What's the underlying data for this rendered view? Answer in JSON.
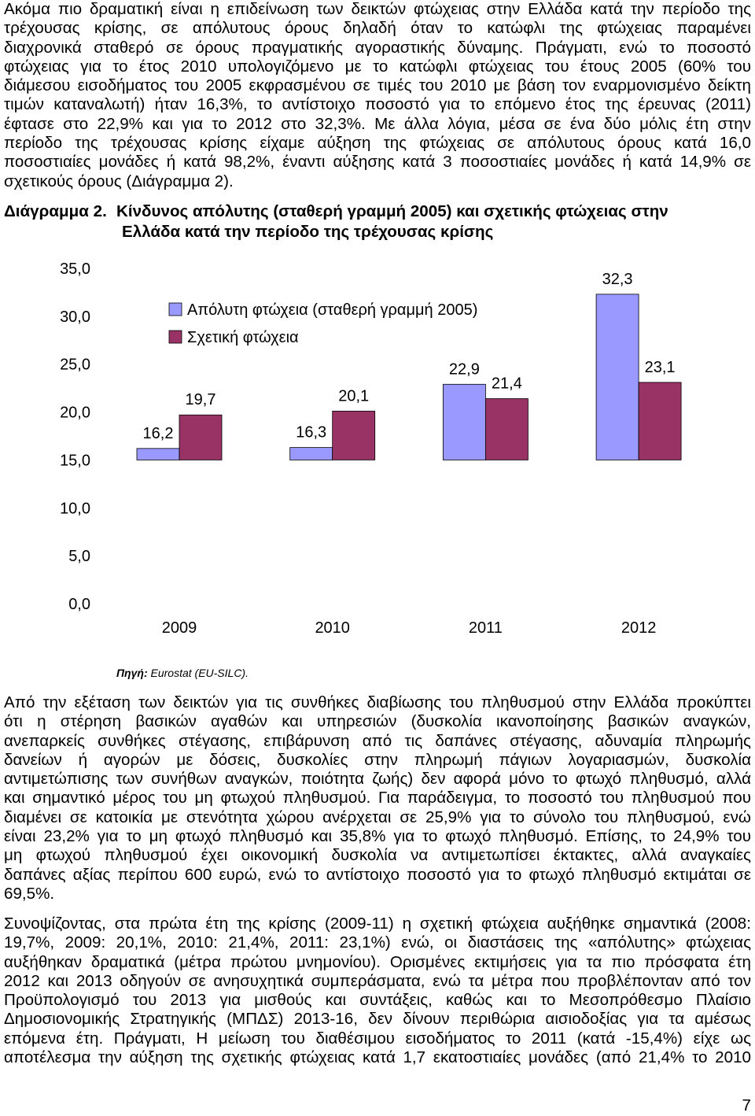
{
  "paragraph_1": {
    "lines": [
      "Ακόμα πιο δραματική είναι η επιδείνωση των δεικτών φτώχειας στην Ελλάδα κατά την περίοδο της",
      "τρέχουσας κρίσης, σε απόλυτους όρους δηλαδή όταν το κατώφλι της φτώχειας παραμένει",
      "διαχρονικά σταθερό σε όρους πραγματικής αγοραστικής δύναμης. Πράγματι, ενώ το ποσοστό",
      "φτώχειας για το έτος 2010 υπολογιζόμενο με το κατώφλι φτώχειας του έτους 2005 (60% του",
      "διάμεσου εισοδήματος του 2005 εκφρασμένου σε τιμές του 2010 με βάση τον εναρμονισμένο δείκτη",
      "τιμών καταναλωτή) ήταν 16,3%, το αντίστοιχο ποσοστό για το επόμενο έτος της έρευνας (2011)",
      "έφτασε στο 22,9% και για το 2012 στο 32,3%. Με άλλα λόγια, μέσα σε ένα δύο μόλις έτη στην",
      "περίοδο της τρέχουσας κρίσης είχαμε αύξηση της φτώχειας σε απόλυτους όρους κατά 16,0",
      "ποσοστιαίες μονάδες ή κατά 98,2%, έναντι αύξησης κατά 3 ποσοστιαίες μονάδες ή κατά 14,9% σε",
      "σχετικούς όρους (Διάγραμμα 2)."
    ]
  },
  "figure_caption": {
    "label": "Διάγραμμα 2.",
    "lines": [
      "Κίνδυνος απόλυτης (σταθερή γραμμή 2005) και σχετικής φτώχειας στην",
      "Ελλάδα κατά την περίοδο της τρέχουσας κρίσης"
    ]
  },
  "chart_data": {
    "type": "bar",
    "categories": [
      "2009",
      "2010",
      "2011",
      "2012"
    ],
    "series": [
      {
        "name": "Απόλυτη φτώχεια (σταθερή γραμμή 2005)",
        "values": [
          16.2,
          16.3,
          22.9,
          32.3
        ],
        "labels": [
          "16,2",
          "16,3",
          "22,9",
          "32,3"
        ],
        "color": "#9999FF"
      },
      {
        "name": "Σχετική φτώχεια",
        "values": [
          19.7,
          20.1,
          21.4,
          23.1
        ],
        "labels": [
          "19,7",
          "20,1",
          "21,4",
          "23,1"
        ],
        "color": "#993366"
      }
    ],
    "y_ticks": [
      {
        "value": 35,
        "label": "35,0"
      },
      {
        "value": 30,
        "label": "30,0"
      },
      {
        "value": 25,
        "label": "25,0"
      },
      {
        "value": 20,
        "label": "20,0"
      },
      {
        "value": 15,
        "label": "15,0"
      },
      {
        "value": 10,
        "label": "10,0"
      },
      {
        "value": 5,
        "label": "5,0"
      },
      {
        "value": 0,
        "label": "0,0"
      }
    ],
    "ylim": [
      0,
      35
    ],
    "grid": false,
    "legend_position": "top-left"
  },
  "source": {
    "label": "Πηγή:",
    "text": "Eurostat (EU-SILC)."
  },
  "paragraph_2": {
    "lines": [
      "Από την εξέταση των δεικτών για τις συνθήκες διαβίωσης του πληθυσμού στην Ελλάδα προκύπτει",
      "ότι η στέρηση βασικών αγαθών και υπηρεσιών (δυσκολία ικανοποίησης βασικών αναγκών,",
      "ανεπαρκείς συνθήκες στέγασης, επιβάρυνση από τις δαπάνες στέγασης, αδυναμία πληρωμής",
      "δανείων ή αγορών με δόσεις, δυσκολίες στην πληρωμή πάγιων λογαριασμών, δυσκολία",
      "αντιμετώπισης των συνήθων αναγκών, ποιότητα ζωής) δεν αφορά μόνο το φτωχό πληθυσμό, αλλά",
      "και σημαντικό μέρος του μη φτωχού πληθυσμού. Για παράδειγμα, το ποσοστό του πληθυσμού που",
      "διαμένει σε κατοικία με στενότητα χώρου ανέρχεται σε 25,9% για το σύνολο του πληθυσμού, ενώ",
      "είναι 23,2% για το μη φτωχό πληθυσμό και 35,8% για το φτωχό πληθυσμό. Επίσης, το 24,9% του",
      "μη φτωχού πληθυσμού έχει οικονομική δυσκολία να αντιμετωπίσει έκτακτες, αλλά αναγκαίες",
      "δαπάνες αξίας περίπου 600 ευρώ, ενώ το αντίστοιχο ποσοστό για το φτωχό πληθυσμό εκτιμάται σε",
      "69,5%."
    ]
  },
  "paragraph_3": {
    "lines": [
      "Συνοψίζοντας, στα πρώτα έτη της κρίσης (2009-11) η σχετική φτώχεια αυξήθηκε σημαντικά (2008:",
      "19,7%, 2009: 20,1%, 2010: 21,4%, 2011: 23,1%) ενώ, οι διαστάσεις της «απόλυτης» φτώχειας",
      "αυξήθηκαν δραματικά (μέτρα πρώτου μνημονίου). Ορισμένες εκτιμήσεις για τα πιο πρόσφατα έτη",
      "2012 και 2013 οδηγούν σε ανησυχητικά συμπεράσματα, ενώ τα μέτρα που προβλέπονταν από τον",
      "Προϋπολογισμό του 2013 για μισθούς και συντάξεις, καθώς και το Μεσοπρόθεσμο Πλαίσιο",
      "Δημοσιονομικής Στρατηγικής (ΜΠΔΣ) 2013-16, δεν δίνουν περιθώρια αισιοδοξίας για τα αμέσως",
      "επόμενα έτη. Πράγματι, Η μείωση του διαθέσιμου εισοδήματος το 2011 (κατά -15,4%) είχε ως",
      "αποτέλεσμα την αύξηση της σχετικής φτώχειας κατά 1,7 εκατοστιαίες μονάδες (από 21,4% το 2010"
    ]
  },
  "page_number": "7"
}
